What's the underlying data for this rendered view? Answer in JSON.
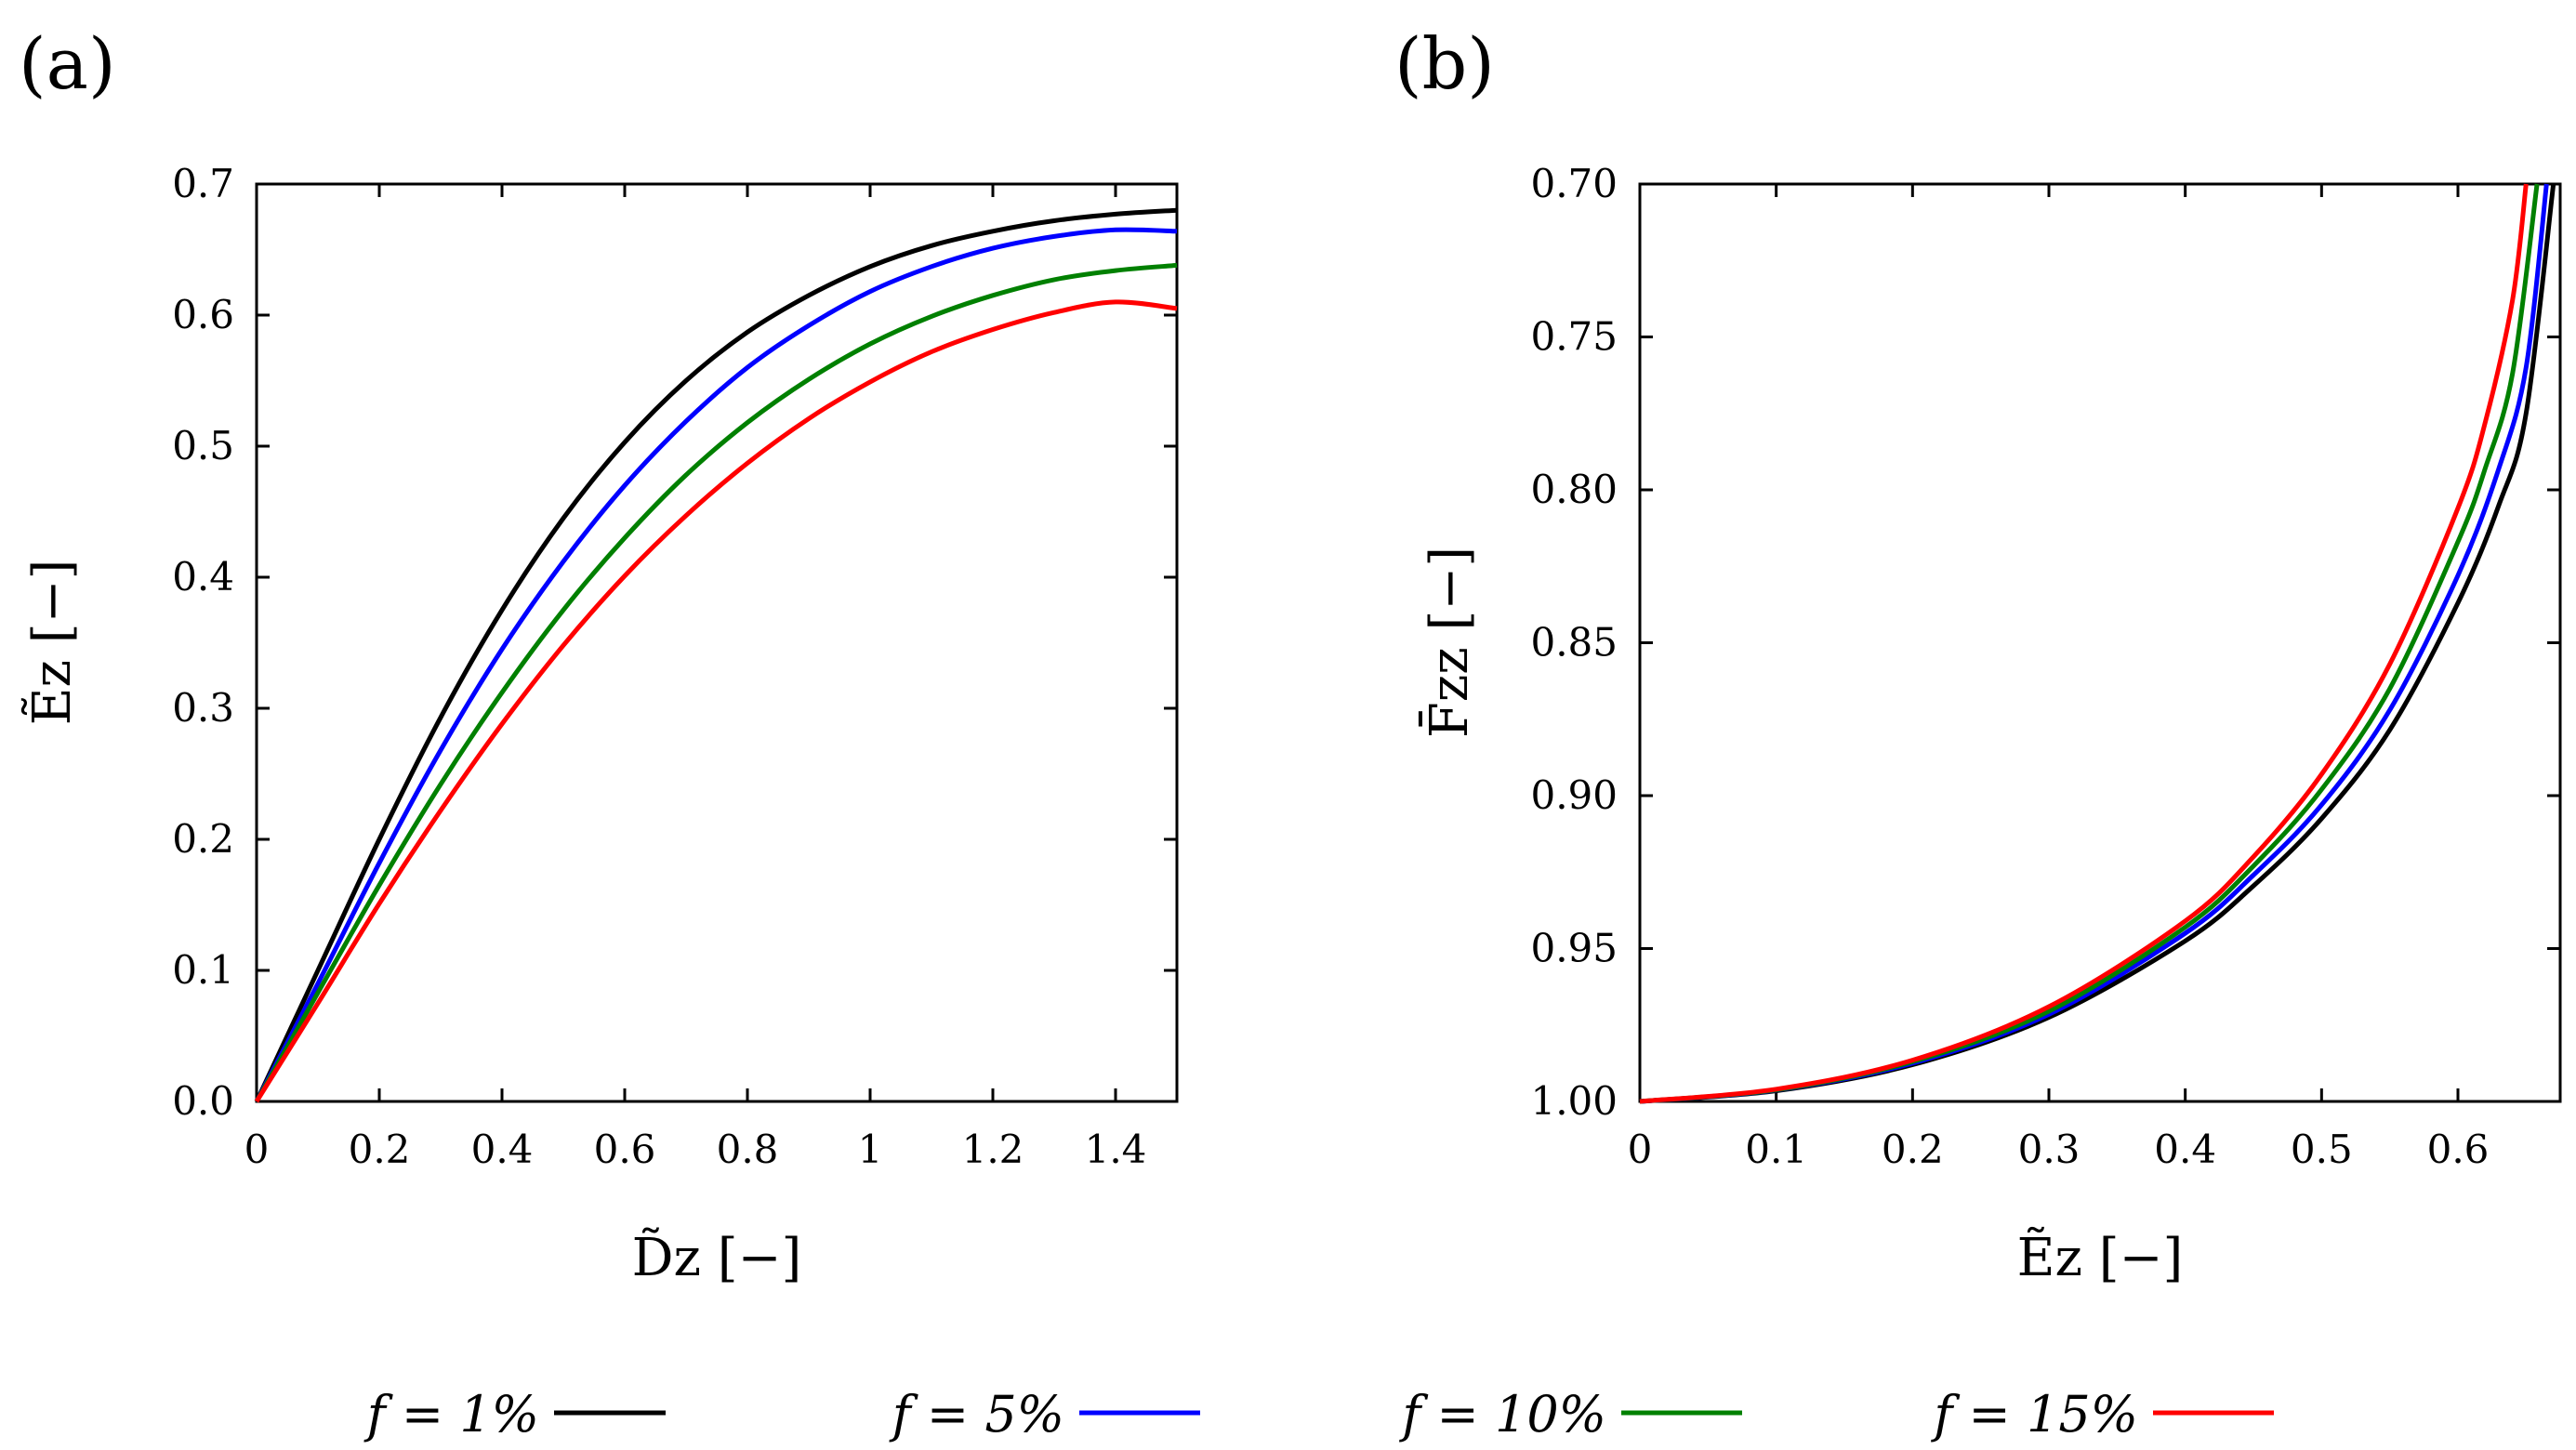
{
  "colors": {
    "f1": "#000000",
    "f5": "#0000ff",
    "f10": "#008000",
    "f15": "#ff0000"
  },
  "legend": [
    {
      "text": "f = 1%",
      "color": "#000000"
    },
    {
      "text": "f = 5%",
      "color": "#0000ff"
    },
    {
      "text": "f = 10%",
      "color": "#008000"
    },
    {
      "text": "f = 15%",
      "color": "#ff0000"
    }
  ],
  "chart_data": [
    {
      "panel": "(a)",
      "type": "line",
      "xlabel": "D̃z [−]",
      "ylabel": "Ẽz [−]",
      "xlim": [
        0,
        1.5
      ],
      "ylim": [
        0,
        0.7
      ],
      "xticks": [
        0,
        0.2,
        0.4,
        0.6,
        0.8,
        1,
        1.2,
        1.4
      ],
      "xtick_labels": [
        "0",
        "0.2",
        "0.4",
        "0.6",
        "0.8",
        "1",
        "1.2",
        "1.4"
      ],
      "yticks": [
        0,
        0.1,
        0.2,
        0.3,
        0.4,
        0.5,
        0.6,
        0.7
      ],
      "ytick_labels": [
        "0.0",
        "0.1",
        "0.2",
        "0.3",
        "0.4",
        "0.5",
        "0.6",
        "0.7"
      ],
      "series": [
        {
          "name": "f = 1%",
          "color": "#000000",
          "x": [
            0,
            0.1,
            0.2,
            0.3,
            0.4,
            0.5,
            0.6,
            0.7,
            0.8,
            0.9,
            1.0,
            1.1,
            1.2,
            1.3,
            1.4,
            1.5
          ],
          "y": [
            0,
            0.1,
            0.2,
            0.293,
            0.375,
            0.445,
            0.503,
            0.55,
            0.587,
            0.615,
            0.637,
            0.653,
            0.664,
            0.672,
            0.677,
            0.68
          ]
        },
        {
          "name": "f = 5%",
          "color": "#0000ff",
          "x": [
            0,
            0.1,
            0.2,
            0.3,
            0.4,
            0.5,
            0.6,
            0.7,
            0.8,
            0.9,
            1.0,
            1.1,
            1.2,
            1.3,
            1.4,
            1.5
          ],
          "y": [
            0,
            0.09,
            0.182,
            0.268,
            0.345,
            0.412,
            0.47,
            0.519,
            0.56,
            0.592,
            0.618,
            0.637,
            0.651,
            0.66,
            0.665,
            0.664
          ]
        },
        {
          "name": "f = 10%",
          "color": "#008000",
          "x": [
            0,
            0.1,
            0.2,
            0.3,
            0.4,
            0.5,
            0.6,
            0.7,
            0.8,
            0.9,
            1.0,
            1.1,
            1.2,
            1.3,
            1.4,
            1.5
          ],
          "y": [
            0,
            0.083,
            0.165,
            0.242,
            0.312,
            0.375,
            0.43,
            0.478,
            0.518,
            0.551,
            0.578,
            0.599,
            0.615,
            0.627,
            0.634,
            0.638
          ]
        },
        {
          "name": "f = 15%",
          "color": "#ff0000",
          "x": [
            0,
            0.1,
            0.2,
            0.3,
            0.4,
            0.5,
            0.6,
            0.7,
            0.8,
            0.9,
            1.0,
            1.1,
            1.2,
            1.3,
            1.4,
            1.5
          ],
          "y": [
            0,
            0.075,
            0.151,
            0.222,
            0.288,
            0.348,
            0.401,
            0.447,
            0.487,
            0.521,
            0.549,
            0.572,
            0.589,
            0.602,
            0.61,
            0.605
          ]
        }
      ]
    },
    {
      "panel": "(b)",
      "type": "line",
      "xlabel": "Ẽz [−]",
      "ylabel": "F̄zz [−]",
      "xlim": [
        0,
        0.675
      ],
      "ylim": [
        1.0,
        0.7
      ],
      "xticks": [
        0,
        0.1,
        0.2,
        0.3,
        0.4,
        0.5,
        0.6
      ],
      "xtick_labels": [
        "0",
        "0.1",
        "0.2",
        "0.3",
        "0.4",
        "0.5",
        "0.6"
      ],
      "yticks": [
        0.7,
        0.75,
        0.8,
        0.85,
        0.9,
        0.95,
        1.0
      ],
      "ytick_labels": [
        "0.70",
        "0.75",
        "0.80",
        "0.85",
        "0.90",
        "0.95",
        "1.00"
      ],
      "series": [
        {
          "name": "f = 1%",
          "color": "#000000",
          "x": [
            0,
            0.1,
            0.2,
            0.3,
            0.4,
            0.45,
            0.5,
            0.55,
            0.6,
            0.63,
            0.65,
            0.67
          ],
          "y": [
            1.0,
            0.9965,
            0.988,
            0.9725,
            0.9475,
            0.9295,
            0.9075,
            0.8785,
            0.837,
            0.805,
            0.775,
            0.7
          ]
        },
        {
          "name": "f = 5%",
          "color": "#0000ff",
          "x": [
            0,
            0.1,
            0.2,
            0.3,
            0.4,
            0.45,
            0.5,
            0.55,
            0.6,
            0.63,
            0.65,
            0.665
          ],
          "y": [
            1.0,
            0.9963,
            0.9875,
            0.9715,
            0.945,
            0.926,
            0.903,
            0.872,
            0.828,
            0.793,
            0.76,
            0.7
          ]
        },
        {
          "name": "f = 10%",
          "color": "#008000",
          "x": [
            0,
            0.1,
            0.2,
            0.3,
            0.4,
            0.45,
            0.5,
            0.55,
            0.6,
            0.62,
            0.64,
            0.658
          ],
          "y": [
            1.0,
            0.9962,
            0.987,
            0.9705,
            0.943,
            0.923,
            0.898,
            0.865,
            0.817,
            0.793,
            0.762,
            0.7
          ]
        },
        {
          "name": "f = 15%",
          "color": "#ff0000",
          "x": [
            0,
            0.1,
            0.2,
            0.3,
            0.4,
            0.45,
            0.5,
            0.55,
            0.6,
            0.62,
            0.64,
            0.65
          ],
          "y": [
            1.0,
            0.996,
            0.9865,
            0.969,
            0.941,
            0.92,
            0.893,
            0.857,
            0.806,
            0.778,
            0.738,
            0.7
          ]
        }
      ]
    }
  ]
}
